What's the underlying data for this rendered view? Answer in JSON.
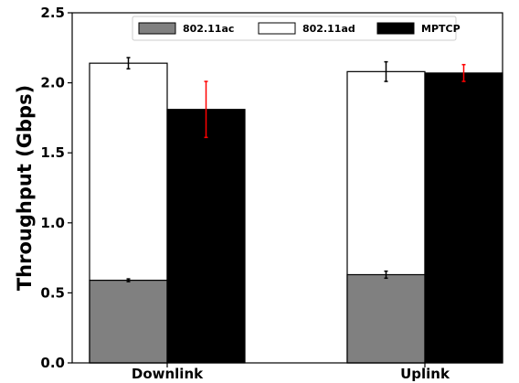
{
  "chart_data": {
    "type": "bar",
    "ylabel": "Throughput (Gbps)",
    "ylim": [
      0,
      2.5
    ],
    "yticks": [
      "0.0",
      "0.5",
      "1.0",
      "1.5",
      "2.0",
      "2.5"
    ],
    "categories": [
      "Downlink",
      "Uplink"
    ],
    "legend_position": "top-center",
    "series": [
      {
        "name": "802.11ac",
        "color": "#808080",
        "values": [
          0.59,
          0.63
        ],
        "error": [
          0.01,
          0.025
        ],
        "error_color": "#000000",
        "stacked_base": true
      },
      {
        "name": "802.11ad",
        "color": "#ffffff",
        "values": [
          2.14,
          2.08
        ],
        "error": [
          0.04,
          0.07
        ],
        "error_color": "#000000",
        "stacked_on": "802.11ac"
      },
      {
        "name": "MPTCP",
        "color": "#000000",
        "values": [
          1.81,
          2.07
        ],
        "error": [
          0.2,
          0.06
        ],
        "error_color": "#ff0000"
      }
    ]
  }
}
